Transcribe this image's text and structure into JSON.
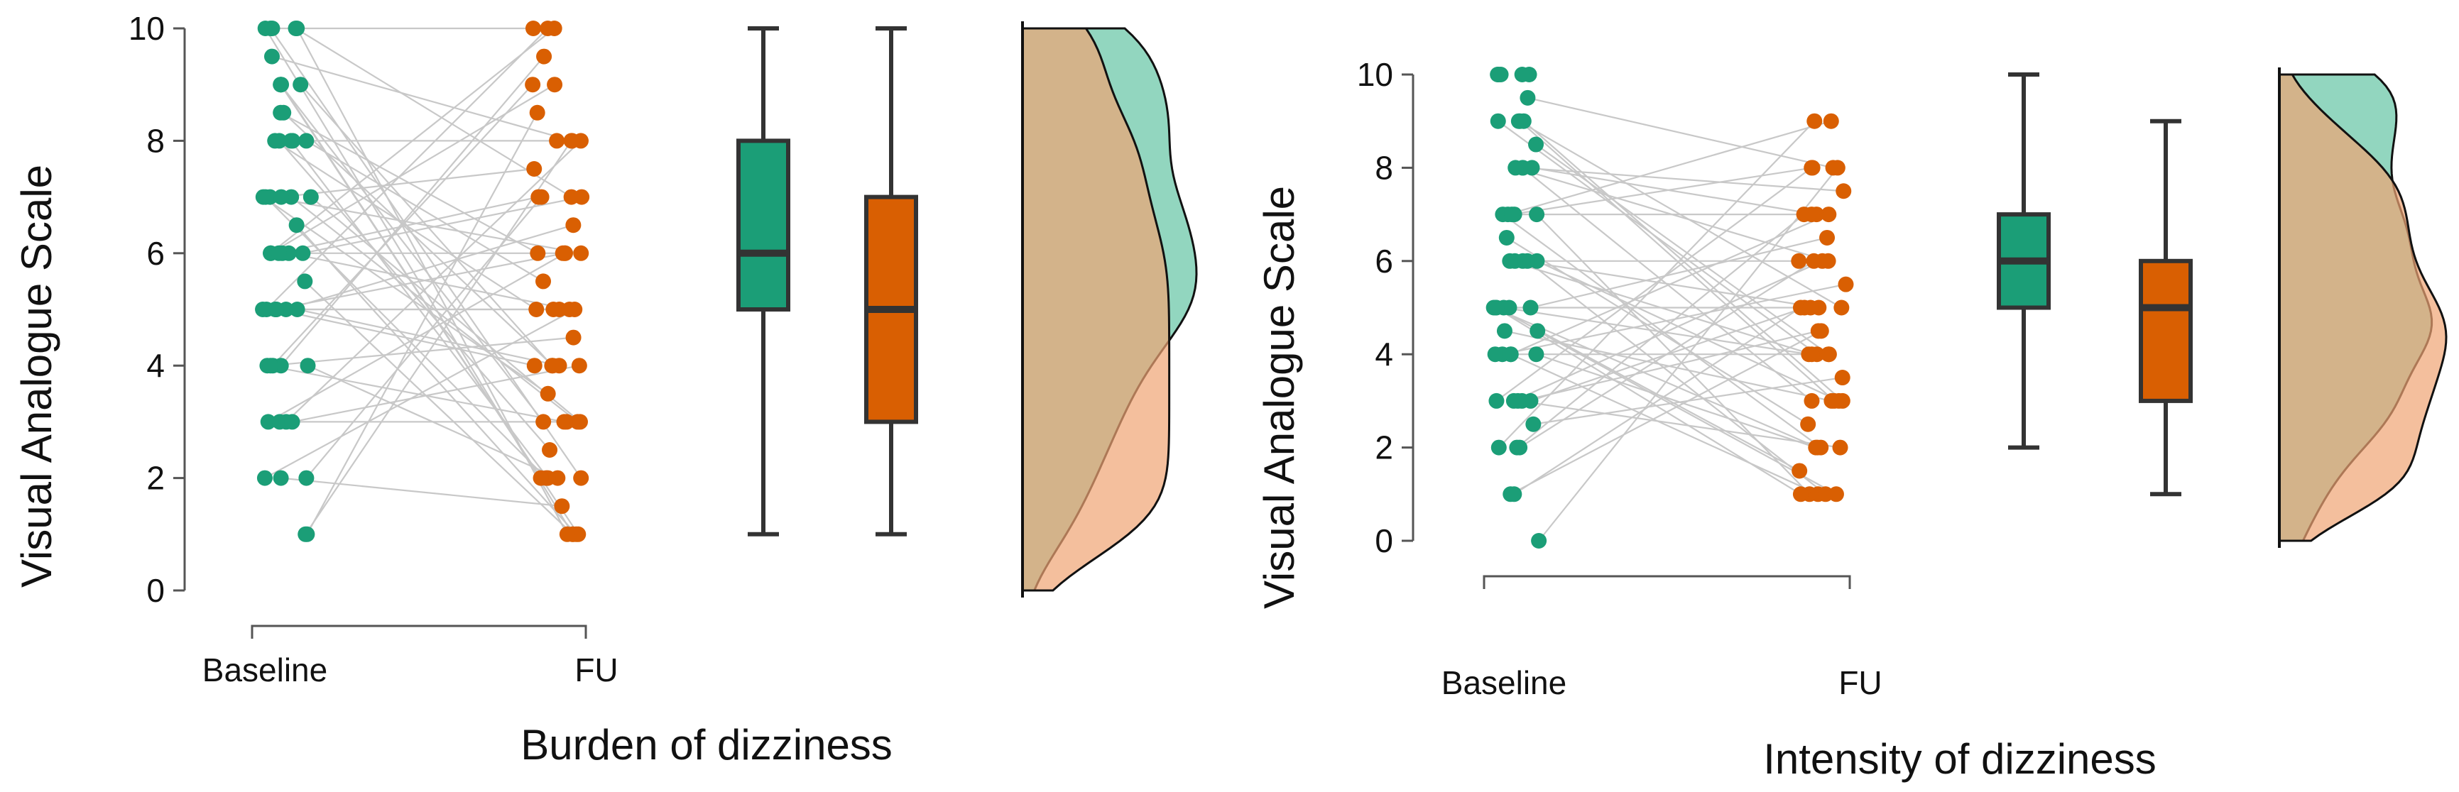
{
  "chart_data": [
    {
      "type": "raincloud",
      "title": "Burden of dizziness",
      "ylabel": "Visual Analogue Scale",
      "xlabel": "",
      "ylim": [
        0,
        10
      ],
      "yticks": [
        "0",
        "2",
        "4",
        "6",
        "8",
        "10"
      ],
      "groups": [
        {
          "name": "Baseline",
          "color": "#1b9e77",
          "density_color": "#7fcfb4",
          "values": [
            1,
            1,
            2,
            2,
            2,
            3,
            3,
            3,
            3,
            4,
            4,
            4,
            4,
            4,
            5,
            5,
            5,
            5,
            5,
            5,
            5,
            5.5,
            6,
            6,
            6,
            6,
            6,
            6,
            6.5,
            7,
            7,
            7,
            7,
            7,
            7,
            8,
            8,
            8,
            8,
            8,
            8.5,
            8.5,
            9,
            9,
            9,
            9,
            9.5,
            10,
            10,
            10,
            10,
            10
          ],
          "box": {
            "min": 1,
            "q1": 5,
            "median": 6,
            "q3": 8,
            "max": 10
          }
        },
        {
          "name": "FU",
          "color": "#d95f02",
          "density_color": "#f0a474",
          "values": [
            1,
            1,
            1,
            1,
            1,
            1.5,
            2,
            2,
            2,
            2,
            2,
            2.5,
            3,
            3,
            3,
            3,
            3,
            3.5,
            4,
            4,
            4,
            4,
            4,
            4.5,
            5,
            5,
            5,
            5,
            5,
            5.5,
            6,
            6,
            6,
            6,
            6,
            6.5,
            7,
            7,
            7,
            7,
            7.5,
            8,
            8,
            8,
            8,
            8.5,
            9,
            9,
            9.5,
            10,
            10,
            10
          ]
        }
      ],
      "fu_box": {
        "min": 1,
        "q1": 3,
        "median": 5,
        "q3": 7,
        "max": 10
      }
    },
    {
      "type": "raincloud",
      "title": "Intensity of dizziness",
      "ylabel": "Visual Analogue Scale",
      "xlabel": "",
      "ylim": [
        0,
        10
      ],
      "yticks": [
        "0",
        "2",
        "4",
        "6",
        "8",
        "10"
      ],
      "groups": [
        {
          "name": "Baseline",
          "color": "#1b9e77",
          "density_color": "#7fcfb4",
          "values": [
            0,
            1,
            1,
            2,
            2,
            2,
            2.5,
            3,
            3,
            3,
            3,
            3,
            4,
            4,
            4,
            4,
            4,
            4.5,
            4.5,
            5,
            5,
            5,
            5,
            5,
            5,
            6,
            6,
            6,
            6,
            6,
            6.5,
            7,
            7,
            7,
            7,
            7,
            8,
            8,
            8,
            8,
            8.5,
            9,
            9,
            9,
            9,
            9.5,
            10,
            10,
            10,
            10,
            10
          ],
          "box": {
            "min": 2,
            "q1": 5,
            "median": 6,
            "q3": 7,
            "max": 10
          }
        },
        {
          "name": "FU",
          "color": "#d95f02",
          "density_color": "#f0a474",
          "values": [
            1,
            1,
            1,
            1,
            1,
            1.5,
            2,
            2,
            2,
            2,
            2.5,
            3,
            3,
            3,
            3,
            3,
            3.5,
            4,
            4,
            4,
            4,
            4,
            4.5,
            4.5,
            5,
            5,
            5,
            5,
            5,
            5.5,
            6,
            6,
            6,
            6,
            6.5,
            7,
            7,
            7,
            7,
            7.5,
            8,
            8,
            8,
            8,
            9,
            9
          ]
        }
      ],
      "fu_box": {
        "min": 1,
        "q1": 3,
        "median": 5,
        "q3": 6,
        "max": 9
      }
    }
  ]
}
